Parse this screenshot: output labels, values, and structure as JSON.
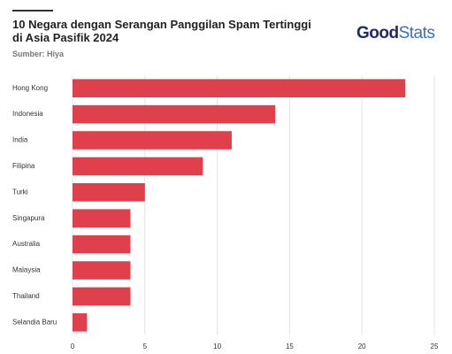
{
  "chart_data": {
    "type": "bar",
    "orientation": "horizontal",
    "title": "10 Negara dengan Serangan Panggilan Spam Tertinggi di Asia Pasifik 2024",
    "subtitle": "Sumber: Hiya",
    "logo": [
      "Good",
      "Stats"
    ],
    "categories": [
      "Hong Kong",
      "Indonesia",
      "India",
      "Filipina",
      "Turki",
      "Singapura",
      "Australia",
      "Malaysia",
      "Thailand",
      "Selandia Baru"
    ],
    "values": [
      23,
      14,
      11,
      9,
      5,
      4,
      4,
      4,
      4,
      1
    ],
    "color": "#e0404b",
    "xlim": [
      0,
      25
    ],
    "xticks": [
      0,
      5,
      10,
      15,
      20,
      25
    ],
    "grid": true
  }
}
